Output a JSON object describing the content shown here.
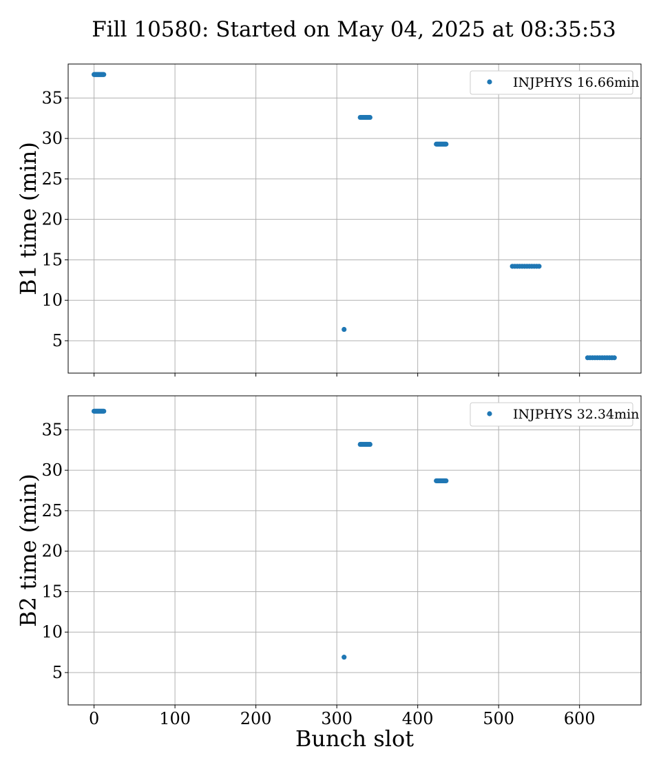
{
  "title": "Fill 10580: Started on May 04, 2025 at 08:35:53",
  "colors": {
    "marker": "#1f77b4",
    "grid": "#b0b0b0",
    "axes": "#000000"
  },
  "chart_data": [
    {
      "type": "scatter",
      "ylabel": "B1 time (min)",
      "xlabel": "",
      "xlim": [
        -32,
        676
      ],
      "ylim": [
        1,
        39.2
      ],
      "xticks": [
        0,
        100,
        200,
        300,
        400,
        500,
        600
      ],
      "xtick_labels_visible": false,
      "yticks": [
        5,
        10,
        15,
        20,
        25,
        30,
        35
      ],
      "grid": true,
      "legend_position": "upper right",
      "series": [
        {
          "name": "INJPHYS 16.66min",
          "points": [
            [
              0,
              37.9
            ],
            [
              1,
              37.9
            ],
            [
              2,
              37.9
            ],
            [
              3,
              37.9
            ],
            [
              4,
              37.9
            ],
            [
              5,
              37.9
            ],
            [
              6,
              37.9
            ],
            [
              7,
              37.9
            ],
            [
              8,
              37.9
            ],
            [
              9,
              37.9
            ],
            [
              10,
              37.9
            ],
            [
              11,
              37.9
            ],
            [
              12,
              37.9
            ],
            [
              309,
              6.4
            ],
            [
              329,
              32.6
            ],
            [
              330,
              32.6
            ],
            [
              331,
              32.6
            ],
            [
              332,
              32.6
            ],
            [
              333,
              32.6
            ],
            [
              334,
              32.6
            ],
            [
              335,
              32.6
            ],
            [
              336,
              32.6
            ],
            [
              337,
              32.6
            ],
            [
              338,
              32.6
            ],
            [
              339,
              32.6
            ],
            [
              340,
              32.6
            ],
            [
              341,
              32.6
            ],
            [
              423,
              29.3
            ],
            [
              424,
              29.3
            ],
            [
              425,
              29.3
            ],
            [
              426,
              29.3
            ],
            [
              427,
              29.3
            ],
            [
              428,
              29.3
            ],
            [
              429,
              29.3
            ],
            [
              430,
              29.3
            ],
            [
              431,
              29.3
            ],
            [
              432,
              29.3
            ],
            [
              433,
              29.3
            ],
            [
              434,
              29.3
            ],
            [
              435,
              29.3
            ],
            [
              517,
              14.2
            ],
            [
              520,
              14.2
            ],
            [
              523,
              14.2
            ],
            [
              526,
              14.2
            ],
            [
              529,
              14.2
            ],
            [
              532,
              14.2
            ],
            [
              535,
              14.2
            ],
            [
              538,
              14.2
            ],
            [
              541,
              14.2
            ],
            [
              544,
              14.2
            ],
            [
              547,
              14.2
            ],
            [
              550,
              14.2
            ],
            [
              610,
              2.9
            ],
            [
              613,
              2.9
            ],
            [
              616,
              2.9
            ],
            [
              619,
              2.9
            ],
            [
              622,
              2.9
            ],
            [
              625,
              2.9
            ],
            [
              628,
              2.9
            ],
            [
              631,
              2.9
            ],
            [
              634,
              2.9
            ],
            [
              637,
              2.9
            ],
            [
              640,
              2.9
            ],
            [
              643,
              2.9
            ]
          ]
        }
      ]
    },
    {
      "type": "scatter",
      "ylabel": "B2 time (min)",
      "xlabel": "Bunch slot",
      "xlim": [
        -32,
        676
      ],
      "ylim": [
        1,
        39.2
      ],
      "xticks": [
        0,
        100,
        200,
        300,
        400,
        500,
        600
      ],
      "xtick_labels_visible": true,
      "yticks": [
        5,
        10,
        15,
        20,
        25,
        30,
        35
      ],
      "grid": true,
      "legend_position": "upper right",
      "series": [
        {
          "name": "INJPHYS 32.34min",
          "points": [
            [
              0,
              37.3
            ],
            [
              1,
              37.3
            ],
            [
              2,
              37.3
            ],
            [
              3,
              37.3
            ],
            [
              4,
              37.3
            ],
            [
              5,
              37.3
            ],
            [
              6,
              37.3
            ],
            [
              7,
              37.3
            ],
            [
              8,
              37.3
            ],
            [
              9,
              37.3
            ],
            [
              10,
              37.3
            ],
            [
              11,
              37.3
            ],
            [
              12,
              37.3
            ],
            [
              309,
              6.9
            ],
            [
              329,
              33.2
            ],
            [
              330,
              33.2
            ],
            [
              331,
              33.2
            ],
            [
              332,
              33.2
            ],
            [
              333,
              33.2
            ],
            [
              334,
              33.2
            ],
            [
              335,
              33.2
            ],
            [
              336,
              33.2
            ],
            [
              337,
              33.2
            ],
            [
              338,
              33.2
            ],
            [
              339,
              33.2
            ],
            [
              340,
              33.2
            ],
            [
              341,
              33.2
            ],
            [
              423,
              28.7
            ],
            [
              424,
              28.7
            ],
            [
              425,
              28.7
            ],
            [
              426,
              28.7
            ],
            [
              427,
              28.7
            ],
            [
              428,
              28.7
            ],
            [
              429,
              28.7
            ],
            [
              430,
              28.7
            ],
            [
              431,
              28.7
            ],
            [
              432,
              28.7
            ],
            [
              433,
              28.7
            ],
            [
              434,
              28.7
            ],
            [
              435,
              28.7
            ]
          ]
        }
      ]
    }
  ]
}
